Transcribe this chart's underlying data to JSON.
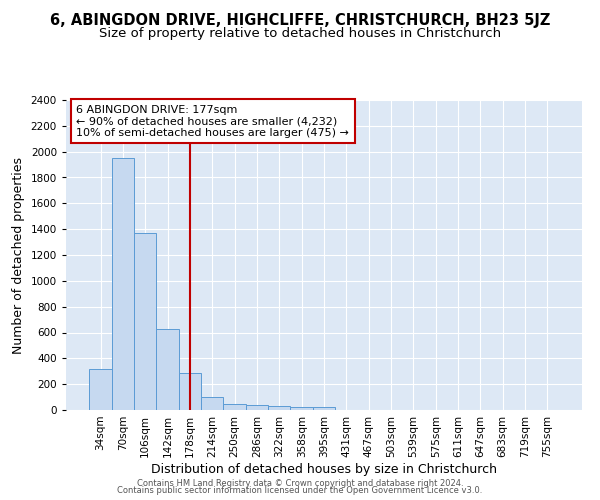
{
  "title": "6, ABINGDON DRIVE, HIGHCLIFFE, CHRISTCHURCH, BH23 5JZ",
  "subtitle": "Size of property relative to detached houses in Christchurch",
  "xlabel": "Distribution of detached houses by size in Christchurch",
  "ylabel": "Number of detached properties",
  "bar_labels": [
    "34sqm",
    "70sqm",
    "106sqm",
    "142sqm",
    "178sqm",
    "214sqm",
    "250sqm",
    "286sqm",
    "322sqm",
    "358sqm",
    "395sqm",
    "431sqm",
    "467sqm",
    "503sqm",
    "539sqm",
    "575sqm",
    "611sqm",
    "647sqm",
    "683sqm",
    "719sqm",
    "755sqm"
  ],
  "bar_values": [
    320,
    1950,
    1370,
    630,
    290,
    100,
    50,
    35,
    30,
    20,
    20,
    0,
    0,
    0,
    0,
    0,
    0,
    0,
    0,
    0,
    0
  ],
  "bar_color": "#c6d9f0",
  "bar_edge_color": "#5b9bd5",
  "bar_width": 1.0,
  "red_line_x": 4.0,
  "red_line_color": "#c00000",
  "ylim": [
    0,
    2400
  ],
  "yticks": [
    0,
    200,
    400,
    600,
    800,
    1000,
    1200,
    1400,
    1600,
    1800,
    2000,
    2200,
    2400
  ],
  "annotation_text_line1": "6 ABINGDON DRIVE: 177sqm",
  "annotation_text_line2": "← 90% of detached houses are smaller (4,232)",
  "annotation_text_line3": "10% of semi-detached houses are larger (475) →",
  "bg_color": "#dde8f5",
  "footer_line1": "Contains HM Land Registry data © Crown copyright and database right 2024.",
  "footer_line2": "Contains public sector information licensed under the Open Government Licence v3.0.",
  "title_fontsize": 10.5,
  "subtitle_fontsize": 9.5,
  "axis_label_fontsize": 9,
  "tick_fontsize": 7.5,
  "annotation_fontsize": 8,
  "footer_fontsize": 6
}
